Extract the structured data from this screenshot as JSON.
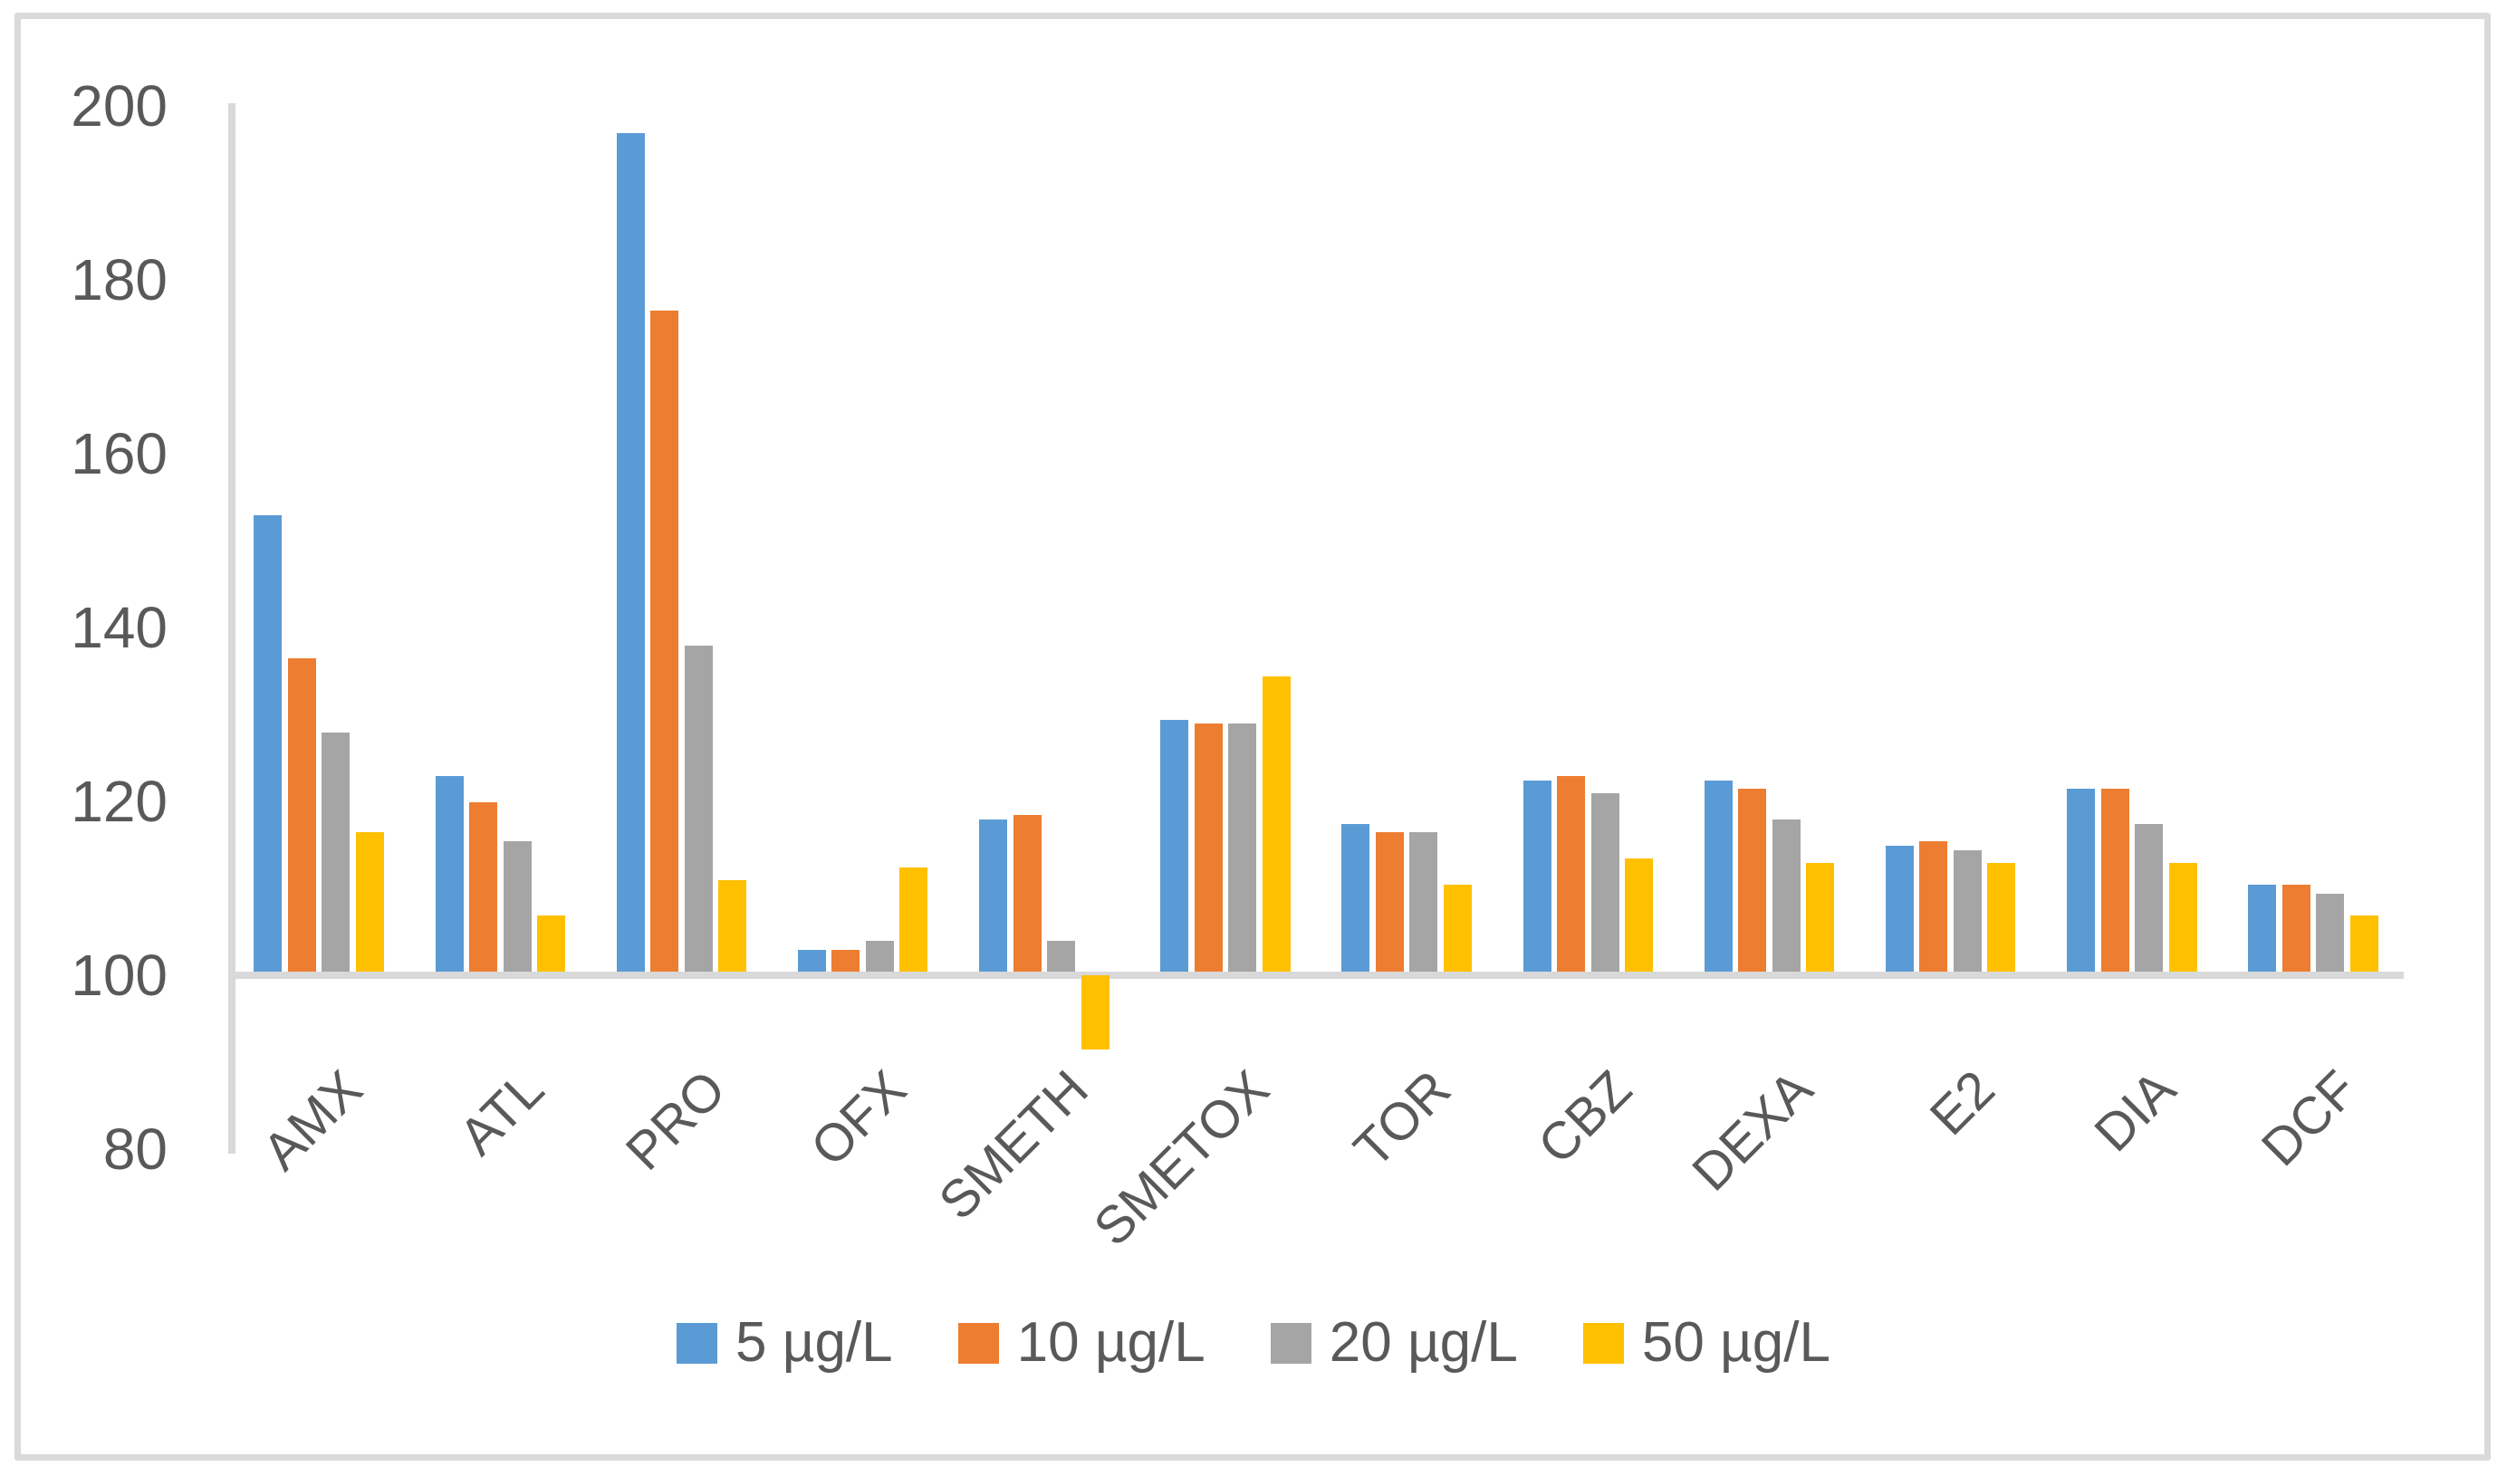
{
  "figure": {
    "background_color": "#FFFFFF",
    "border_color": "#DADADA",
    "axis_line_color": "#D9D9D9",
    "text_color": "#595959"
  },
  "chart_data": {
    "type": "bar",
    "title": "",
    "xlabel": "",
    "ylabel": "",
    "grid": false,
    "legend_position": "bottom",
    "ylim": [
      80,
      200
    ],
    "y_ticks": [
      80,
      100,
      120,
      140,
      160,
      180,
      200
    ],
    "bar_baseline": 100,
    "categories": [
      "AMX",
      "ATL",
      "PRO",
      "OFX",
      "SMETH",
      "SMETOX",
      "TOR",
      "CBZ",
      "DEXA",
      "E2",
      "DIA",
      "DCF"
    ],
    "series": [
      {
        "name": "5 µg/L",
        "color": "#5B9BD5",
        "values": [
          152.5,
          122.5,
          196.5,
          102.5,
          117.5,
          129,
          117,
          122,
          122,
          114.5,
          121,
          110
        ]
      },
      {
        "name": "10 µg/L",
        "color": "#ED7D31",
        "values": [
          136,
          119.5,
          176,
          102.5,
          118,
          128.5,
          116,
          122.5,
          121,
          115,
          121,
          110
        ]
      },
      {
        "name": "20 µg/L",
        "color": "#A5A5A5",
        "values": [
          127.5,
          115,
          137.5,
          103.5,
          103.5,
          128.5,
          116,
          120.5,
          117.5,
          114,
          117,
          109
        ]
      },
      {
        "name": "50 µg/L",
        "color": "#FFC000",
        "values": [
          116,
          106.5,
          110.5,
          112,
          91.5,
          134,
          110,
          113,
          112.5,
          112.5,
          112.5,
          106.5
        ]
      }
    ]
  }
}
